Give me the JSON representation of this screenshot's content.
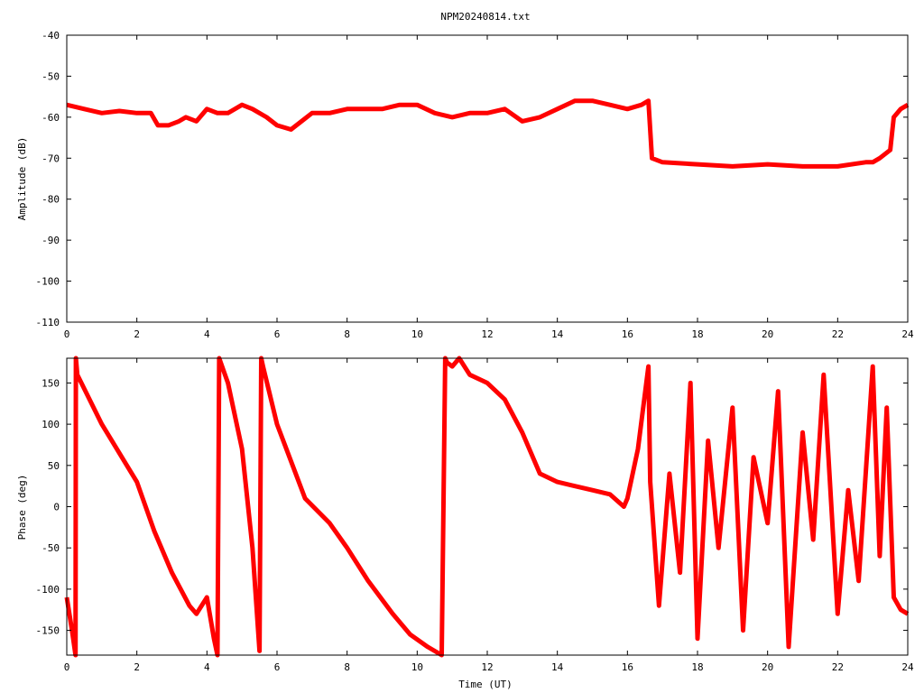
{
  "chart_data": [
    {
      "type": "line",
      "title": "NPM20240814.txt",
      "xlabel": "",
      "ylabel": "Amplitude (dB)",
      "xlim": [
        0,
        24
      ],
      "ylim": [
        -110,
        -40
      ],
      "x_ticks": [
        "0",
        "2",
        "4",
        "6",
        "8",
        "10",
        "12",
        "14",
        "16",
        "18",
        "20",
        "22",
        "24"
      ],
      "y_ticks": [
        "-40",
        "-50",
        "-60",
        "-70",
        "-80",
        "-90",
        "-100",
        "-110"
      ],
      "grid": false,
      "line_color": "#ff0000",
      "series": [
        {
          "x": [
            0,
            0.5,
            1,
            1.5,
            2,
            2.4,
            2.6,
            2.9,
            3.2,
            3.4,
            3.7,
            4.0,
            4.3,
            4.6,
            5.0,
            5.3,
            5.7,
            6.0,
            6.4,
            6.7,
            7.0,
            7.5,
            8.0,
            8.5,
            9.0,
            9.5,
            10.0,
            10.5,
            11.0,
            11.5,
            12.0,
            12.5,
            13.0,
            13.5,
            14.0,
            14.5,
            15.0,
            15.5,
            16.0,
            16.4,
            16.6,
            16.7,
            17.0,
            18.0,
            19.0,
            20.0,
            21.0,
            22.0,
            22.8,
            23.0,
            23.2,
            23.5,
            23.6,
            23.8,
            24.0
          ],
          "values": [
            -57,
            -58,
            -59,
            -58.5,
            -59,
            -59,
            -62,
            -62,
            -61,
            -60,
            -61,
            -58,
            -59,
            -59,
            -57,
            -58,
            -60,
            -62,
            -63,
            -61,
            -59,
            -59,
            -58,
            -58,
            -58,
            -57,
            -57,
            -59,
            -60,
            -59,
            -59,
            -58,
            -61,
            -60,
            -58,
            -56,
            -56,
            -57,
            -58,
            -57,
            -56,
            -70,
            -71,
            -71.5,
            -72,
            -71.5,
            -72,
            -72,
            -71,
            -71,
            -70,
            -68,
            -60,
            -58,
            -57
          ]
        }
      ]
    },
    {
      "type": "line",
      "title": "",
      "xlabel": "Time (UT)",
      "ylabel": "Phase (deg)",
      "xlim": [
        0,
        24
      ],
      "ylim": [
        -180,
        180
      ],
      "x_ticks": [
        "0",
        "2",
        "4",
        "6",
        "8",
        "10",
        "12",
        "14",
        "16",
        "18",
        "20",
        "22",
        "24"
      ],
      "y_ticks": [
        "150",
        "100",
        "50",
        "0",
        "-50",
        "-100",
        "-150"
      ],
      "grid": false,
      "line_color": "#ff0000",
      "series": [
        {
          "x": [
            0,
            0.15,
            0.25,
            0.26,
            0.3,
            1,
            2,
            2.5,
            3,
            3.5,
            3.7,
            4.0,
            4.2,
            4.3,
            4.35,
            4.6,
            5.0,
            5.3,
            5.5,
            5.55,
            5.6,
            6.0,
            6.8,
            7.5,
            8.0,
            8.6,
            9.3,
            9.8,
            10.3,
            10.7,
            10.8,
            10.85,
            11.0,
            11.2,
            11.5,
            12.0,
            12.5,
            13.0,
            13.5,
            14.0,
            14.5,
            15.0,
            15.5,
            15.9,
            16.0,
            16.3,
            16.6,
            16.65,
            16.9,
            17.2,
            17.5,
            17.8,
            18.0,
            18.3,
            18.6,
            19.0,
            19.3,
            19.6,
            20.0,
            20.3,
            20.6,
            21.0,
            21.3,
            21.6,
            22.0,
            22.3,
            22.6,
            23.0,
            23.2,
            23.4,
            23.6,
            23.8,
            24.0
          ],
          "values": [
            -110,
            -150,
            -180,
            180,
            160,
            100,
            30,
            -30,
            -80,
            -120,
            -130,
            -110,
            -160,
            -180,
            180,
            150,
            70,
            -50,
            -175,
            180,
            170,
            100,
            10,
            -20,
            -50,
            -90,
            -130,
            -155,
            -170,
            -180,
            180,
            175,
            170,
            180,
            160,
            150,
            130,
            90,
            40,
            30,
            25,
            20,
            15,
            0,
            10,
            70,
            170,
            30,
            -120,
            40,
            -80,
            150,
            -160,
            80,
            -50,
            120,
            -150,
            60,
            -20,
            140,
            -170,
            90,
            -40,
            160,
            -130,
            20,
            -90,
            170,
            -60,
            120,
            -110,
            -125,
            -130
          ]
        }
      ]
    }
  ]
}
